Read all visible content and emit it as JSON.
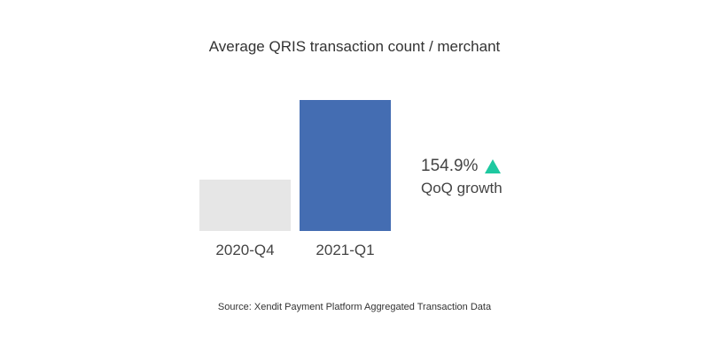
{
  "chart_data": {
    "type": "bar",
    "title": "Average QRIS transaction count / merchant",
    "categories": [
      "2020-Q4",
      "2021-Q1"
    ],
    "values": [
      1.0,
      2.549
    ],
    "colors": [
      "#e6e6e6",
      "#446db2"
    ],
    "xlabel": "",
    "ylabel": "",
    "grid": false,
    "legend": "none",
    "annotation": {
      "value": "154.9%",
      "label": "QoQ growth",
      "indicator": "up-triangle-icon",
      "indicator_color": "#1ec8a0"
    },
    "source": "Source: Xendit Payment Platform Aggregated Transaction Data"
  }
}
